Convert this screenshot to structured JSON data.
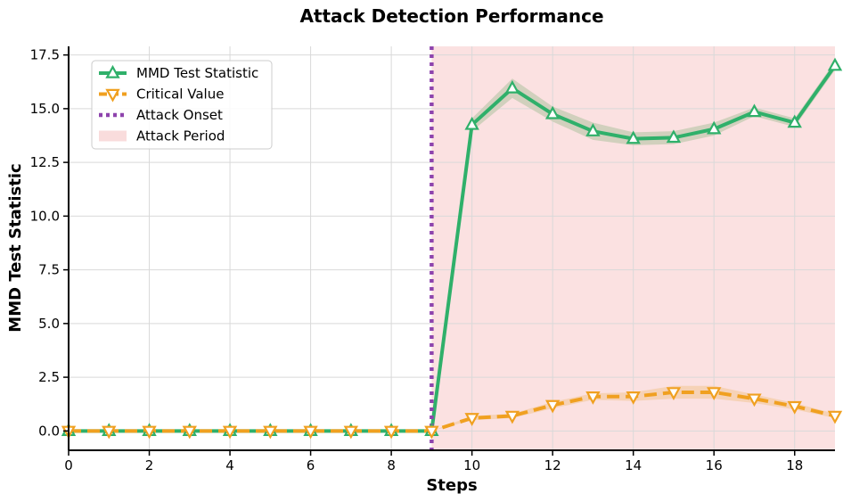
{
  "chart_data": {
    "type": "line",
    "title": "Attack Detection Performance",
    "xlabel": "Steps",
    "ylabel": "MMD Test Statistic",
    "xlim": [
      0,
      19
    ],
    "ylim": [
      -0.9,
      17.9
    ],
    "xticks": [
      0,
      2,
      4,
      6,
      8,
      10,
      12,
      14,
      16,
      18
    ],
    "xtick_labels": [
      "0",
      "2",
      "4",
      "6",
      "8",
      "10",
      "12",
      "14",
      "16",
      "18"
    ],
    "yticks": [
      0,
      2.5,
      5,
      7.5,
      10,
      12.5,
      15,
      17.5
    ],
    "ytick_labels": [
      "0.0",
      "2.5",
      "5.0",
      "7.5",
      "10.0",
      "12.5",
      "15.0",
      "17.5"
    ],
    "grid": true,
    "legend_position": "top-left",
    "attack_onset": 9,
    "attack_period": [
      9,
      19
    ],
    "x": [
      0,
      1,
      2,
      3,
      4,
      5,
      6,
      7,
      8,
      9,
      10,
      11,
      12,
      13,
      14,
      15,
      16,
      17,
      18,
      19
    ],
    "series": [
      {
        "name": "MMD Test Statistic",
        "color": "#2fb06a",
        "marker": "triangle-up",
        "line_style": "solid",
        "values": [
          0,
          0,
          0,
          0,
          0,
          0,
          0,
          0,
          0,
          0,
          14.25,
          15.95,
          14.75,
          13.95,
          13.6,
          13.65,
          14.05,
          14.85,
          14.35,
          17.0
        ],
        "band": [
          0,
          0,
          0,
          0,
          0,
          0,
          0,
          0,
          0,
          0,
          0.3,
          0.45,
          0.35,
          0.4,
          0.3,
          0.3,
          0.3,
          0.2,
          0.2,
          0.2
        ]
      },
      {
        "name": "Critical Value",
        "color": "#f0a020",
        "marker": "triangle-down",
        "line_style": "dashed",
        "values": [
          0,
          0,
          0,
          0,
          0,
          0,
          0,
          0,
          0,
          0,
          0.6,
          0.7,
          1.2,
          1.6,
          1.6,
          1.8,
          1.8,
          1.5,
          1.15,
          0.7
        ],
        "band": [
          0,
          0,
          0,
          0,
          0,
          0,
          0,
          0,
          0,
          0,
          0.1,
          0.1,
          0.15,
          0.15,
          0.2,
          0.3,
          0.3,
          0.2,
          0.15,
          0.1
        ]
      }
    ],
    "legend": [
      {
        "label": "MMD Test Statistic",
        "color": "#2fb06a",
        "kind": "line-marker-up"
      },
      {
        "label": "Critical Value",
        "color": "#f0a020",
        "kind": "dashed-marker-down"
      },
      {
        "label": "Attack Onset",
        "color": "#8e44ad",
        "kind": "dotted"
      },
      {
        "label": "Attack Period",
        "color": "#f9dcdc",
        "kind": "patch"
      }
    ],
    "colors": {
      "attack_onset": "#8e44ad",
      "attack_period": "#fbe1e1",
      "mmd_band": "#c9cdb6",
      "critical_band": "#f5cfae"
    }
  }
}
